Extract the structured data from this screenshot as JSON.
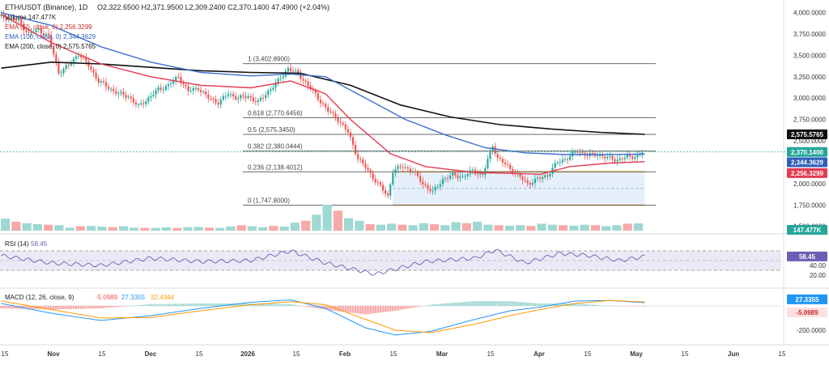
{
  "colors": {
    "bull": "#26a69a",
    "bear": "#ef5350",
    "ema50": "#e53950",
    "ema100": "#3f6fd1",
    "ema200": "#111111",
    "fib": "#555555",
    "range_box": "#f0a030",
    "range_fill": "#dce9f8",
    "rsi_line": "#6b5fb5",
    "rsi_band": "#ece9f6",
    "macd_line": "#2196f3",
    "signal_line": "#ff9800",
    "vol_up": "#9fd8d2",
    "vol_down": "#f7a9a8"
  },
  "legend": {
    "title": "ETH/USDT (Binance), 1D",
    "ohlc": "O2,322.6500 H2,371.9500 L2,309.2400 C2,370.1400 47.4900 (+2.04%)",
    "volume": "Volume 147.477K",
    "ema50": "EMA (50, close, 0) 2,256.3299",
    "ema100": "EMA (100, close, 0) 2,344.3629",
    "ema200": "EMA (200, close, 0) 2,575.5765"
  },
  "fib_labels": [
    "1 (3,402.8900)",
    "0.618 (2,770.6456)",
    "0.5 (2,575.3450)",
    "0.382 (2,380.0444)",
    "0.236 (2,138.4012)",
    "0 (1,747.8000)"
  ],
  "price_axis": {
    "ticks": [
      "4,000.0000",
      "3,750.0000",
      "3,500.0000",
      "3,250.0000",
      "3,000.0000",
      "2,750.0000",
      "2,500.0000",
      "2,250.0000",
      "2,000.0000",
      "1,750.0000",
      "1,500.0000"
    ]
  },
  "price_tags": {
    "ema200": "2,575.5765",
    "close": "2,370.1400",
    "ema100": "2,344.3629",
    "ema50": "2,256.3299",
    "volume": "147.477K"
  },
  "rsi": {
    "label": "RSI (14)",
    "value": "58.45",
    "ticks": [
      "40.00",
      "20.00"
    ]
  },
  "macd": {
    "label": "MACD (12, 26, close, 9)",
    "hist_value": "-5.0989",
    "macd_value": "27.3355",
    "signal_value": "32.4344",
    "ticks": [
      "-200.0000"
    ]
  },
  "time_axis": [
    "15",
    "Nov",
    "15",
    "Dec",
    "15",
    "2026",
    "15",
    "Feb",
    "15",
    "Mar",
    "15",
    "Apr",
    "15",
    "May",
    "15",
    "Jun",
    "15"
  ],
  "chart_data": {
    "type": "candlestick",
    "title": "ETH/USDT (Binance), 1D",
    "ylim": [
      1450,
      4100
    ],
    "y_scale": "linear",
    "grid": false,
    "last": {
      "open": 2322.65,
      "high": 2371.95,
      "low": 2309.24,
      "close": 2370.14,
      "change": 47.49,
      "change_pct": 2.04
    },
    "close_path": [
      [
        0,
        3960
      ],
      [
        8,
        3900
      ],
      [
        12,
        3750
      ],
      [
        16,
        3800
      ],
      [
        20,
        3720
      ],
      [
        24,
        3300
      ],
      [
        28,
        3380
      ],
      [
        32,
        3520
      ],
      [
        36,
        3380
      ],
      [
        40,
        3200
      ],
      [
        44,
        3120
      ],
      [
        48,
        3050
      ],
      [
        52,
        3020
      ],
      [
        56,
        2900
      ],
      [
        60,
        3000
      ],
      [
        64,
        3100
      ],
      [
        68,
        3150
      ],
      [
        72,
        3250
      ],
      [
        76,
        3080
      ],
      [
        80,
        3120
      ],
      [
        84,
        3000
      ],
      [
        88,
        2950
      ],
      [
        92,
        3050
      ],
      [
        96,
        3000
      ],
      [
        100,
        3020
      ],
      [
        104,
        2950
      ],
      [
        108,
        3080
      ],
      [
        112,
        3200
      ],
      [
        116,
        3350
      ],
      [
        120,
        3280
      ],
      [
        124,
        3150
      ],
      [
        128,
        3000
      ],
      [
        132,
        2850
      ],
      [
        136,
        2750
      ],
      [
        140,
        2600
      ],
      [
        144,
        2300
      ],
      [
        148,
        2150
      ],
      [
        152,
        2000
      ],
      [
        156,
        1850
      ],
      [
        158,
        2150
      ],
      [
        162,
        2200
      ],
      [
        166,
        2150
      ],
      [
        170,
        2000
      ],
      [
        174,
        1900
      ],
      [
        178,
        2050
      ],
      [
        182,
        2100
      ],
      [
        186,
        2080
      ],
      [
        190,
        2150
      ],
      [
        194,
        2100
      ],
      [
        198,
        2450
      ],
      [
        200,
        2300
      ],
      [
        204,
        2200
      ],
      [
        208,
        2100
      ],
      [
        212,
        2000
      ],
      [
        216,
        2050
      ],
      [
        220,
        2100
      ],
      [
        224,
        2250
      ],
      [
        228,
        2300
      ],
      [
        232,
        2380
      ],
      [
        236,
        2330
      ],
      [
        240,
        2340
      ],
      [
        244,
        2300
      ],
      [
        248,
        2280
      ],
      [
        252,
        2310
      ],
      [
        256,
        2322
      ],
      [
        258,
        2370
      ]
    ],
    "volume": [
      240,
      180,
      150,
      130,
      120,
      110,
      60,
      90,
      95,
      80,
      70,
      90,
      60,
      55,
      55,
      65,
      55,
      70,
      75,
      60,
      55,
      85,
      110,
      90,
      70,
      95,
      80,
      160,
      200,
      320,
      520,
      400,
      250,
      200,
      130,
      120,
      140,
      120,
      110,
      150,
      130,
      110,
      170,
      150,
      180,
      120,
      110,
      100,
      110,
      95,
      140,
      120,
      110,
      100,
      120,
      110,
      90,
      110,
      140,
      147
    ],
    "ema50": [
      [
        0,
        3980
      ],
      [
        20,
        3650
      ],
      [
        40,
        3400
      ],
      [
        60,
        3250
      ],
      [
        80,
        3150
      ],
      [
        100,
        3120
      ],
      [
        116,
        3200
      ],
      [
        130,
        3050
      ],
      [
        140,
        2750
      ],
      [
        156,
        2350
      ],
      [
        170,
        2200
      ],
      [
        190,
        2130
      ],
      [
        204,
        2120
      ],
      [
        216,
        2110
      ],
      [
        228,
        2200
      ],
      [
        244,
        2240
      ],
      [
        258,
        2256
      ]
    ],
    "ema100": [
      [
        0,
        4000
      ],
      [
        20,
        3850
      ],
      [
        40,
        3600
      ],
      [
        60,
        3420
      ],
      [
        80,
        3300
      ],
      [
        100,
        3260
      ],
      [
        116,
        3280
      ],
      [
        130,
        3250
      ],
      [
        146,
        3000
      ],
      [
        162,
        2750
      ],
      [
        178,
        2570
      ],
      [
        194,
        2420
      ],
      [
        210,
        2360
      ],
      [
        226,
        2340
      ],
      [
        242,
        2340
      ],
      [
        258,
        2344
      ]
    ],
    "ema200": [
      [
        0,
        3350
      ],
      [
        20,
        3420
      ],
      [
        40,
        3400
      ],
      [
        60,
        3360
      ],
      [
        80,
        3320
      ],
      [
        100,
        3300
      ],
      [
        120,
        3290
      ],
      [
        140,
        3150
      ],
      [
        160,
        2920
      ],
      [
        180,
        2780
      ],
      [
        200,
        2690
      ],
      [
        220,
        2640
      ],
      [
        240,
        2600
      ],
      [
        258,
        2576
      ]
    ],
    "fib_levels": [
      {
        "ratio": 1,
        "price": 3402.89
      },
      {
        "ratio": 0.618,
        "price": 2770.6456
      },
      {
        "ratio": 0.5,
        "price": 2575.345
      },
      {
        "ratio": 0.382,
        "price": 2380.0444
      },
      {
        "ratio": 0.236,
        "price": 2138.4012
      },
      {
        "ratio": 0,
        "price": 1747.8
      }
    ],
    "range_box": {
      "high": 2138.4012,
      "low": 1747.8,
      "start_bar": 157,
      "end_bar": 258
    },
    "rsi": {
      "ylim": [
        0,
        100
      ],
      "overbought": 70,
      "oversold": 30,
      "values": [
        [
          0,
          60
        ],
        [
          20,
          45
        ],
        [
          40,
          40
        ],
        [
          60,
          55
        ],
        [
          80,
          48
        ],
        [
          100,
          50
        ],
        [
          116,
          70
        ],
        [
          130,
          45
        ],
        [
          150,
          22
        ],
        [
          156,
          30
        ],
        [
          170,
          48
        ],
        [
          190,
          55
        ],
        [
          198,
          72
        ],
        [
          210,
          45
        ],
        [
          224,
          65
        ],
        [
          236,
          60
        ],
        [
          248,
          50
        ],
        [
          258,
          58.45
        ]
      ]
    },
    "macd": {
      "ylim": [
        -280,
        120
      ],
      "macd_line": [
        [
          0,
          20
        ],
        [
          20,
          -60
        ],
        [
          40,
          -120
        ],
        [
          60,
          -80
        ],
        [
          80,
          -20
        ],
        [
          100,
          30
        ],
        [
          116,
          50
        ],
        [
          130,
          -20
        ],
        [
          146,
          -180
        ],
        [
          158,
          -240
        ],
        [
          172,
          -210
        ],
        [
          190,
          -110
        ],
        [
          204,
          -40
        ],
        [
          216,
          -10
        ],
        [
          230,
          40
        ],
        [
          244,
          45
        ],
        [
          258,
          27.3355
        ]
      ],
      "signal_line": [
        [
          0,
          40
        ],
        [
          20,
          -30
        ],
        [
          40,
          -100
        ],
        [
          60,
          -95
        ],
        [
          80,
          -40
        ],
        [
          100,
          10
        ],
        [
          116,
          35
        ],
        [
          130,
          10
        ],
        [
          146,
          -110
        ],
        [
          158,
          -200
        ],
        [
          172,
          -220
        ],
        [
          190,
          -150
        ],
        [
          204,
          -80
        ],
        [
          216,
          -30
        ],
        [
          230,
          20
        ],
        [
          244,
          45
        ],
        [
          258,
          32.4344
        ]
      ],
      "last_histogram": -5.0989
    },
    "x_axis": {
      "total_bars": 258
    }
  }
}
